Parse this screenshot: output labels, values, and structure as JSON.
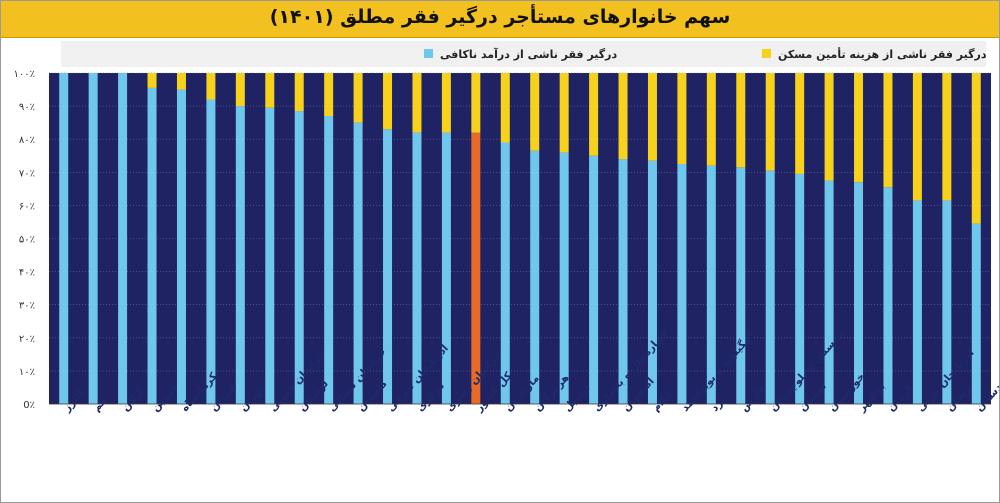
{
  "title": "سهم خانوارهای مستأجر درگیر فقر مطلق (۱۴۰۱)",
  "colors": {
    "income_poverty": "#70c7ec",
    "housing_poverty": "#f7d21d",
    "remainder": "#1f2363",
    "total_highlight": "#e96a24",
    "title_bar": "#f2c01f",
    "grid": "#6a6a9a",
    "legend_bg": "#f0f0f0"
  },
  "chart_data": {
    "type": "bar",
    "stacked": true,
    "title": "سهم خانوارهای مستأجر درگیر فقر مطلق (۱۴۰۱)",
    "xlabel": "",
    "ylabel": "",
    "ylim": [
      0,
      100
    ],
    "yticks": [
      0,
      10,
      20,
      30,
      40,
      50,
      60,
      70,
      80,
      90,
      100
    ],
    "ytick_labels": [
      "0٪",
      "۱۰٪",
      "۲۰٪",
      "۳۰٪",
      "۴۰٪",
      "۵۰٪",
      "۶۰٪",
      "۷۰٪",
      "۸۰٪",
      "۹۰٪",
      "۱۰۰٪"
    ],
    "legend_position": "top",
    "categories": [
      "البرز",
      "قم",
      "گیلان",
      "قزوین",
      "کرمانشاه",
      "همدان",
      "تهران",
      "خراسان جنوبی",
      "لرستان",
      "خراسان شمالی",
      "گلستان",
      "آذربایجان شرقی",
      "مرکزی",
      "خراسان رضوی",
      "کل کشور",
      "مازندران",
      "هرمزگان",
      "اردبیل",
      "چهارمحال و بختیاری",
      "اصفهان",
      "ایلام",
      "کهگیلویه و بویراحمد",
      "یزد",
      "فارس",
      "سیستان و بلوچستان",
      "سمنان",
      "خوزستان",
      "بوشهر",
      "کرمان",
      "آذربایجان غربی",
      "زنجان",
      "کردستان"
    ],
    "highlight_category": "کل کشور",
    "series": [
      {
        "name": "درگیر فقر ناشی از درآمد ناکافی",
        "values": [
          100,
          100,
          100,
          95.5,
          95,
          92,
          90,
          89.5,
          88.5,
          87,
          85,
          83,
          82,
          82,
          82,
          79,
          76.5,
          76,
          75,
          74,
          73.5,
          72.5,
          72,
          71.5,
          70.5,
          69.5,
          67.5,
          67,
          65.5,
          61.5,
          61.5,
          54.5
        ]
      },
      {
        "name": "درگیر فقر ناشی از هزینه تأمین مسکن",
        "values": [
          0,
          0,
          0,
          4.5,
          5,
          8,
          10,
          10.5,
          11.5,
          13,
          15,
          17,
          18,
          18,
          18,
          21,
          23.5,
          24,
          25,
          26,
          26.5,
          27.5,
          28,
          28.5,
          29.5,
          30.5,
          32.5,
          33,
          34.5,
          38.5,
          38.5,
          45.5
        ]
      }
    ]
  }
}
